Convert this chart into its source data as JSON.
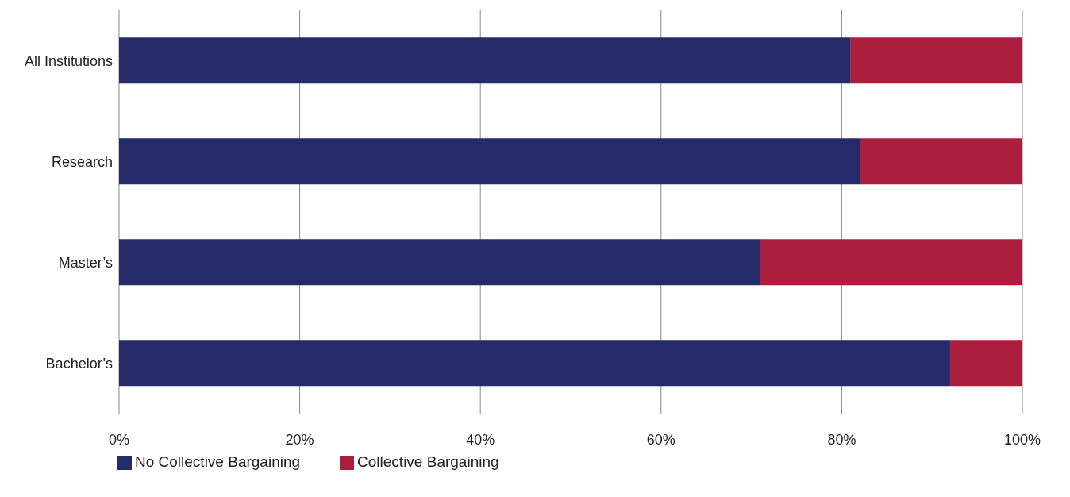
{
  "chart_data": {
    "type": "bar",
    "orientation": "horizontal",
    "stacked": true,
    "categories": [
      "All Institutions",
      "Research",
      "Master’s",
      "Bachelor’s"
    ],
    "series": [
      {
        "name": "No Collective Bargaining",
        "color": "#252a69",
        "values": [
          81,
          82,
          71,
          92
        ]
      },
      {
        "name": "Collective Bargaining",
        "color": "#ab1e3e",
        "values": [
          19,
          18,
          29,
          8
        ]
      }
    ],
    "xlim": [
      0,
      100
    ],
    "xticks": [
      {
        "value": 0,
        "label": "0%"
      },
      {
        "value": 20,
        "label": "20%"
      },
      {
        "value": 40,
        "label": "40%"
      },
      {
        "value": 60,
        "label": "60%"
      },
      {
        "value": 80,
        "label": "80%"
      },
      {
        "value": 100,
        "label": "100%"
      }
    ],
    "grid": "x",
    "legend": "bottom left"
  }
}
